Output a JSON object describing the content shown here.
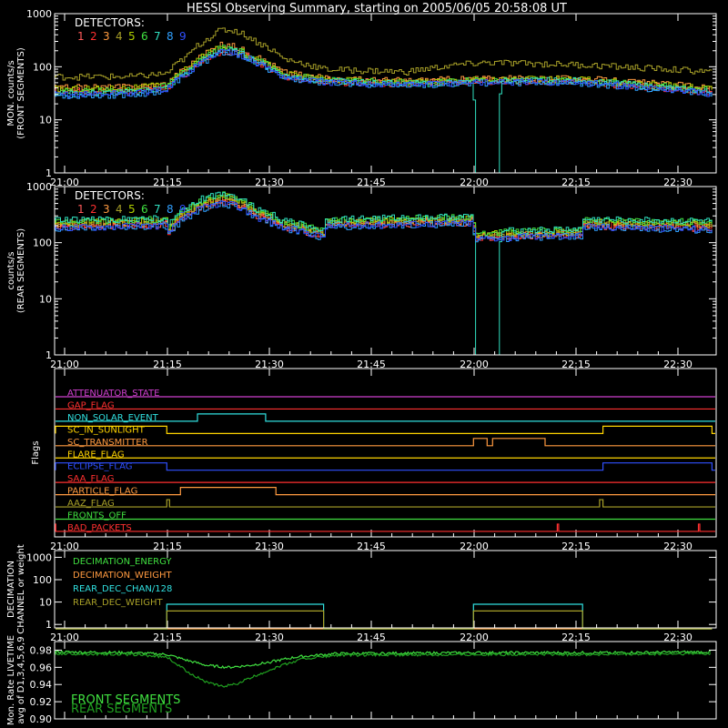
{
  "title": "HESSI Observing Summary, starting on 2005/06/05 20:58:08 UT",
  "colors": {
    "d1": "#ff5a5a",
    "d2": "#ff3030",
    "d3": "#ff9a40",
    "d4": "#ffd400",
    "d5": "#b0d000",
    "d6": "#40e040",
    "d7": "#30e0c0",
    "d8": "#30a0ff",
    "d9": "#3050ff",
    "olive": "#a8a028",
    "frame": "#ffffff"
  },
  "x_ticks": [
    "21:00",
    "21:15",
    "21:30",
    "21:45",
    "22:00",
    "22:15",
    "22:30"
  ],
  "chart_data": [
    {
      "type": "line",
      "panel": "front",
      "ylabel_lines": [
        "MON. counts/s",
        "(FRONT SEGMENTS)"
      ],
      "yscale": "log",
      "ylim": [
        1,
        1000
      ],
      "y_ticks": [
        "1000",
        "100",
        "10",
        "1"
      ],
      "legend_title": "DETECTORS:",
      "legend_items": [
        "1",
        "2",
        "3",
        "4",
        "5",
        "6",
        "7",
        "8",
        "9"
      ],
      "x_range_minutes": [
        -2,
        95
      ],
      "series": [
        {
          "name": "1",
          "color": "d1",
          "x": [
            -2,
            10,
            15,
            18,
            21,
            23,
            25,
            28,
            32,
            38,
            50,
            60,
            75,
            85,
            95
          ],
          "y": [
            35,
            37,
            42,
            85,
            160,
            220,
            200,
            130,
            70,
            55,
            50,
            55,
            55,
            45,
            35
          ]
        },
        {
          "name": "2",
          "color": "d2",
          "x": [
            -2,
            10,
            15,
            18,
            21,
            23,
            25,
            28,
            32,
            38,
            50,
            60,
            75,
            85,
            95
          ],
          "y": [
            32,
            35,
            40,
            80,
            150,
            200,
            190,
            120,
            65,
            52,
            48,
            53,
            52,
            42,
            33
          ]
        },
        {
          "name": "3",
          "color": "d3",
          "x": [
            -2,
            10,
            15,
            18,
            21,
            23,
            25,
            28,
            32,
            38,
            50,
            60,
            75,
            85,
            95
          ],
          "y": [
            40,
            42,
            48,
            100,
            190,
            260,
            240,
            150,
            80,
            60,
            55,
            60,
            60,
            50,
            40
          ]
        },
        {
          "name": "4",
          "color": "olive",
          "x": [
            -2,
            10,
            15,
            18,
            21,
            23,
            25,
            28,
            32,
            38,
            50,
            58,
            62,
            75,
            85,
            95
          ],
          "y": [
            65,
            65,
            75,
            160,
            350,
            500,
            480,
            300,
            140,
            90,
            80,
            110,
            120,
            110,
            95,
            80
          ]
        },
        {
          "name": "5",
          "color": "d5",
          "x": [
            -2,
            10,
            15,
            18,
            21,
            23,
            25,
            28,
            32,
            38,
            50,
            60,
            75,
            85,
            95
          ],
          "y": [
            38,
            40,
            46,
            95,
            180,
            240,
            220,
            140,
            75,
            58,
            52,
            58,
            58,
            48,
            38
          ]
        },
        {
          "name": "6",
          "color": "d6",
          "x": [
            -2,
            10,
            15,
            18,
            21,
            23,
            25,
            28,
            32,
            38,
            50,
            60,
            75,
            85,
            95
          ],
          "y": [
            34,
            36,
            44,
            85,
            165,
            230,
            210,
            135,
            72,
            56,
            50,
            56,
            56,
            46,
            36
          ]
        },
        {
          "name": "7",
          "color": "d7",
          "x": [
            -2,
            10,
            15,
            18,
            21,
            23,
            25,
            28,
            32,
            38,
            50,
            59.9,
            60,
            63.5,
            64,
            75,
            85,
            95
          ],
          "y": [
            30,
            33,
            40,
            80,
            150,
            210,
            195,
            125,
            68,
            54,
            48,
            50,
            1,
            1,
            55,
            55,
            44,
            33
          ]
        },
        {
          "name": "8",
          "color": "d8",
          "x": [
            -2,
            10,
            15,
            18,
            21,
            23,
            25,
            28,
            32,
            38,
            50,
            60,
            75,
            85,
            95
          ],
          "y": [
            28,
            30,
            36,
            75,
            140,
            190,
            180,
            115,
            62,
            50,
            45,
            50,
            50,
            40,
            30
          ]
        },
        {
          "name": "9",
          "color": "d9",
          "x": [
            -2,
            10,
            15,
            18,
            21,
            23,
            25,
            28,
            32,
            38,
            50,
            60,
            75,
            85,
            95
          ],
          "y": [
            30,
            32,
            38,
            78,
            145,
            200,
            185,
            118,
            64,
            51,
            46,
            51,
            51,
            41,
            31
          ]
        }
      ]
    },
    {
      "type": "line",
      "panel": "rear",
      "ylabel_lines": [
        "counts/s",
        "(REAR SEGMENTS)"
      ],
      "yscale": "log",
      "ylim": [
        1,
        1000
      ],
      "y_ticks": [
        "1000",
        "100",
        "10",
        "1"
      ],
      "legend_title": "DETECTORS:",
      "legend_items": [
        "1",
        "2",
        "3",
        "4",
        "5",
        "6",
        "7",
        "8",
        "9"
      ],
      "x_range_minutes": [
        -2,
        95
      ],
      "series": [
        {
          "name": "1",
          "color": "d1",
          "x": [
            -2,
            14.9,
            15,
            17,
            20,
            23,
            25,
            28,
            32,
            37.9,
            38,
            50,
            59.9,
            60,
            75.9,
            76,
            95
          ],
          "y": [
            190,
            210,
            140,
            260,
            420,
            540,
            480,
            300,
            190,
            130,
            200,
            220,
            230,
            120,
            140,
            200,
            180
          ]
        },
        {
          "name": "2",
          "color": "d2",
          "x": [
            -2,
            14.9,
            15,
            17,
            20,
            23,
            25,
            28,
            32,
            37.9,
            38,
            50,
            59.9,
            60,
            75.9,
            76,
            95
          ],
          "y": [
            200,
            220,
            150,
            270,
            440,
            560,
            500,
            310,
            200,
            135,
            210,
            230,
            240,
            125,
            145,
            210,
            190
          ]
        },
        {
          "name": "3",
          "color": "d3",
          "x": [
            -2,
            14.9,
            15,
            17,
            20,
            23,
            25,
            28,
            32,
            37.9,
            38,
            50,
            59.9,
            60,
            75.9,
            76,
            95
          ],
          "y": [
            210,
            230,
            160,
            290,
            470,
            600,
            530,
            330,
            210,
            140,
            220,
            240,
            250,
            130,
            150,
            220,
            200
          ]
        },
        {
          "name": "4",
          "color": "olive",
          "x": [
            -2,
            14.9,
            15,
            17,
            20,
            23,
            25,
            28,
            32,
            37.9,
            38,
            50,
            59.9,
            60,
            75.9,
            76,
            95
          ],
          "y": [
            220,
            240,
            165,
            300,
            500,
            650,
            570,
            350,
            220,
            145,
            230,
            250,
            260,
            135,
            155,
            230,
            210
          ]
        },
        {
          "name": "5",
          "color": "d5",
          "x": [
            -2,
            14.9,
            15,
            17,
            20,
            23,
            25,
            28,
            32,
            37.9,
            38,
            50,
            59.9,
            60,
            75.9,
            76,
            95
          ],
          "y": [
            225,
            245,
            170,
            310,
            520,
            680,
            600,
            360,
            225,
            150,
            235,
            255,
            265,
            140,
            160,
            235,
            215
          ]
        },
        {
          "name": "6",
          "color": "d6",
          "x": [
            -2,
            14.9,
            15,
            17,
            20,
            23,
            25,
            28,
            32,
            37.9,
            38,
            50,
            59.9,
            60,
            75.9,
            76,
            95
          ],
          "y": [
            240,
            260,
            180,
            330,
            560,
            720,
            640,
            380,
            240,
            160,
            250,
            270,
            280,
            150,
            170,
            250,
            230
          ]
        },
        {
          "name": "7",
          "color": "d7",
          "x": [
            -2,
            14.9,
            15,
            17,
            20,
            23,
            25,
            28,
            32,
            37.9,
            38,
            50,
            59.9,
            60,
            63.5,
            64,
            75.9,
            76,
            95
          ],
          "y": [
            250,
            270,
            190,
            350,
            600,
            780,
            680,
            400,
            250,
            165,
            260,
            280,
            290,
            1,
            1,
            160,
            175,
            260,
            240
          ]
        },
        {
          "name": "8",
          "color": "d8",
          "x": [
            -2,
            14.9,
            15,
            17,
            20,
            23,
            25,
            28,
            32,
            37.9,
            38,
            50,
            59.9,
            60,
            75.9,
            76,
            95
          ],
          "y": [
            180,
            200,
            130,
            240,
            400,
            500,
            450,
            280,
            180,
            125,
            190,
            210,
            220,
            115,
            135,
            190,
            170
          ]
        },
        {
          "name": "9",
          "color": "d9",
          "x": [
            -2,
            14.9,
            15,
            17,
            20,
            23,
            25,
            28,
            32,
            37.9,
            38,
            50,
            59.9,
            60,
            75.9,
            76,
            95
          ],
          "y": [
            185,
            205,
            135,
            250,
            410,
            520,
            460,
            290,
            185,
            128,
            195,
            215,
            225,
            118,
            138,
            195,
            175
          ]
        }
      ]
    },
    {
      "type": "table",
      "panel": "flags",
      "ylabel": "Flags",
      "x_range_minutes": [
        -2,
        95
      ],
      "flags": [
        {
          "name": "ATTENUATOR_STATE",
          "color": "#d040d0",
          "steps": []
        },
        {
          "name": "GAP_FLAG",
          "color": "#ff3030",
          "steps": []
        },
        {
          "name": "NON_SOLAR_EVENT",
          "color": "#30e0e0",
          "steps": [
            [
              19.5,
              29.5
            ]
          ]
        },
        {
          "name": "SC_IN_SUNLIGHT",
          "color": "#ffd400",
          "steps": [
            [
              -2,
              15
            ],
            [
              79,
              95
            ]
          ]
        },
        {
          "name": "SC_TRANSMITTER",
          "color": "#ff9a40",
          "steps": [
            [
              60,
              62
            ],
            [
              62.8,
              70.5
            ]
          ]
        },
        {
          "name": "FLARE_FLAG",
          "color": "#ffd400",
          "steps": []
        },
        {
          "name": "ECLIPSE_FLAG",
          "color": "#3050ff",
          "steps": [
            [
              -2,
              15
            ],
            [
              79,
              95
            ]
          ]
        },
        {
          "name": "SAA_FLAG",
          "color": "#ff3030",
          "steps": []
        },
        {
          "name": "PARTICLE_FLAG",
          "color": "#ff9a40",
          "steps": [
            [
              17,
              31
            ]
          ]
        },
        {
          "name": "AAZ_FLAG",
          "color": "#a8a028",
          "steps": [
            [
              15,
              15.4
            ],
            [
              78.5,
              79
            ]
          ]
        },
        {
          "name": "FRONTS_OFF",
          "color": "#40e040",
          "steps": []
        },
        {
          "name": "BAD_PACKETS",
          "color": "#ff3030",
          "steps": [
            [
              -1.5,
              -1.3
            ],
            [
              72.3,
              72.5
            ],
            [
              93,
              93.2
            ]
          ]
        }
      ]
    },
    {
      "type": "line",
      "panel": "decimation",
      "ylabel_lines": [
        "DECIMATION",
        "CHANNEL or weight"
      ],
      "yscale": "log",
      "ylim": [
        0.7,
        2000
      ],
      "y_ticks": [
        "1000",
        "100",
        "10",
        "1"
      ],
      "x_range_minutes": [
        -2,
        95
      ],
      "series": [
        {
          "name": "DECIMATION_ENERGY",
          "color": "#40e040",
          "x": [
            -2,
            95
          ],
          "y": [
            0.5,
            0.5
          ]
        },
        {
          "name": "DECIMATION_WEIGHT",
          "color": "#ff9a40",
          "x": [
            -2,
            95
          ],
          "y": [
            0.5,
            0.5
          ]
        },
        {
          "name": "REAR_DEC_CHAN/128",
          "color": "#30e0e0",
          "x": [
            -2,
            15,
            15,
            38,
            38,
            60,
            60,
            76,
            76,
            95
          ],
          "y": [
            0.5,
            0.5,
            8,
            8,
            0.5,
            0.5,
            8,
            8,
            0.5,
            0.5
          ]
        },
        {
          "name": "REAR_DEC_WEIGHT",
          "color": "#a8a028",
          "x": [
            -2,
            15,
            15,
            38,
            38,
            60,
            60,
            76,
            76,
            95
          ],
          "y": [
            0.5,
            0.5,
            4,
            4,
            0.5,
            0.5,
            4,
            4,
            0.5,
            0.5
          ]
        }
      ]
    },
    {
      "type": "line",
      "panel": "livetime",
      "ylabel_lines": [
        "Mon. Rate LIVETIME",
        "avg of D1,3,4,5,6,9"
      ],
      "ylim": [
        0.9,
        0.99
      ],
      "y_ticks": [
        "0.98",
        "0.96",
        "0.94",
        "0.92",
        "0.90"
      ],
      "x_range_minutes": [
        -2,
        95
      ],
      "series": [
        {
          "name": "FRONT SEGMENTS",
          "color": "#40e040",
          "x": [
            -2,
            10,
            15,
            18,
            21,
            24,
            27,
            30,
            34,
            40,
            60,
            80,
            95
          ],
          "y": [
            0.978,
            0.977,
            0.975,
            0.968,
            0.962,
            0.96,
            0.962,
            0.966,
            0.972,
            0.976,
            0.977,
            0.977,
            0.978
          ]
        },
        {
          "name": "REAR SEGMENTS",
          "color": "#20a020",
          "x": [
            -2,
            10,
            15,
            18,
            21,
            23,
            25,
            28,
            31,
            35,
            40,
            60,
            80,
            95
          ],
          "y": [
            0.976,
            0.975,
            0.972,
            0.955,
            0.942,
            0.938,
            0.94,
            0.95,
            0.96,
            0.97,
            0.974,
            0.975,
            0.975,
            0.976
          ]
        }
      ]
    }
  ]
}
